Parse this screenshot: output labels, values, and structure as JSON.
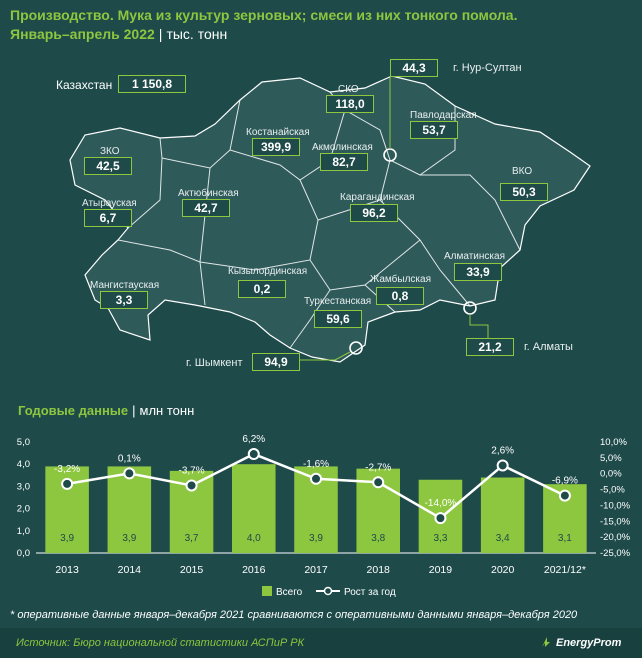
{
  "header": {
    "title_line1": "Производство. Мука из культур зерновых; смеси из них тонкого помола.",
    "title_line2": "Январь–апрель 2022",
    "unit": "тыс. тонн"
  },
  "map": {
    "country_label": "Казахстан",
    "country_value": "1 150,8",
    "regions": [
      {
        "label": "ЗКО",
        "value": "42,5"
      },
      {
        "label": "Атырауская",
        "value": "6,7"
      },
      {
        "label": "Мангистауская",
        "value": "3,3"
      },
      {
        "label": "Актюбинская",
        "value": "42,7"
      },
      {
        "label": "Костанайская",
        "value": "399,9"
      },
      {
        "label": "СКО",
        "value": "118,0"
      },
      {
        "label": "Акмолинская",
        "value": "82,7"
      },
      {
        "label": "Павлодарская",
        "value": "53,7"
      },
      {
        "label": "ВКО",
        "value": "50,3"
      },
      {
        "label": "Карагандинская",
        "value": "96,2"
      },
      {
        "label": "Кызылординская",
        "value": "0,2"
      },
      {
        "label": "Туркестанская",
        "value": "59,6"
      },
      {
        "label": "Жамбылская",
        "value": "0,8"
      },
      {
        "label": "Алматинская",
        "value": "33,9"
      }
    ],
    "cities": [
      {
        "label": "г. Нур-Султан",
        "value": "44,3"
      },
      {
        "label": "г. Алматы",
        "value": "21,2"
      },
      {
        "label": "г. Шымкент",
        "value": "94,9"
      }
    ]
  },
  "annual": {
    "title": "Годовые данные",
    "unit": "млн тонн"
  },
  "chart_data": {
    "type": "bar",
    "categories": [
      "2013",
      "2014",
      "2015",
      "2016",
      "2017",
      "2018",
      "2019",
      "2020",
      "2021/12*"
    ],
    "series": [
      {
        "name": "Всего",
        "type": "bar",
        "axis": "left",
        "values": [
          3.9,
          3.9,
          3.7,
          4.0,
          3.9,
          3.8,
          3.3,
          3.4,
          3.1
        ],
        "labels": [
          "3,9",
          "3,9",
          "3,7",
          "4,0",
          "3,9",
          "3,8",
          "3,3",
          "3,4",
          "3,1"
        ],
        "color": "#8dc63f"
      },
      {
        "name": "Рост за год",
        "type": "line",
        "axis": "right",
        "values": [
          -3.2,
          0.1,
          -3.7,
          6.2,
          -1.6,
          -2.7,
          -14.0,
          2.6,
          -6.9
        ],
        "labels": [
          "-3,2%",
          "0,1%",
          "-3,7%",
          "6,2%",
          "-1,6%",
          "-2,7%",
          "-14,0%",
          "2,6%",
          "-6,9%"
        ],
        "color": "#ffffff"
      }
    ],
    "ylim_left": [
      0,
      5
    ],
    "yticks_left": [
      "0,0",
      "1,0",
      "2,0",
      "3,0",
      "4,0",
      "5,0"
    ],
    "ylim_right": [
      -25,
      10
    ],
    "yticks_right": [
      "10,0%",
      "5,0%",
      "0,0%",
      "-5,0%",
      "-10,0%",
      "-15,0%",
      "-20,0%",
      "-25,0%"
    ],
    "legend_position": "bottom"
  },
  "footnote": "* оперативные данные января–декабря 2021 сравниваются с оперативными данными января–декабря 2020",
  "source": "Источник: Бюро национальной статистики АСПиР РК",
  "brand": "EnergyProm"
}
